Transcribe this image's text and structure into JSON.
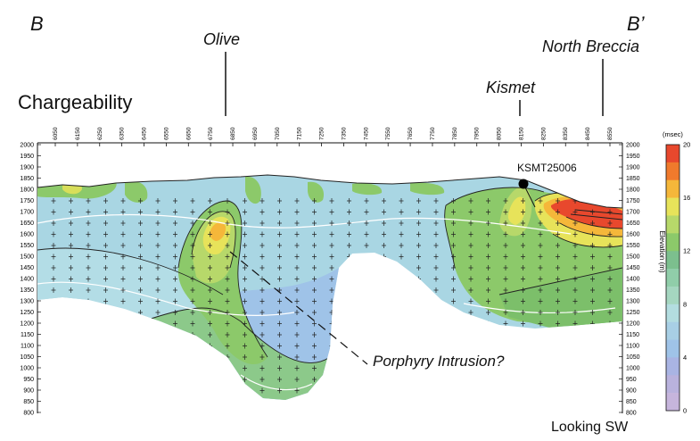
{
  "section": {
    "left_label": "B",
    "right_label": "B’",
    "title": "Chargeability",
    "looking": "Looking SW"
  },
  "targets": [
    {
      "name": "Olive"
    },
    {
      "name": "Kismet"
    },
    {
      "name": "North Breccia"
    }
  ],
  "drillhole": "KSMT25006",
  "annotation": "Porphyry Intrusion?",
  "top_axis_labels": [
    "6050",
    "6150",
    "6250",
    "6350",
    "6450",
    "6550",
    "6650",
    "6750",
    "6850",
    "6950",
    "7050",
    "7150",
    "7250",
    "7350",
    "7450",
    "7550",
    "7650",
    "7750",
    "7850",
    "7950",
    "8050",
    "8150",
    "8250",
    "8350",
    "8450",
    "8550"
  ],
  "elevation_labels": [
    "2000",
    "1950",
    "1900",
    "1850",
    "1800",
    "1750",
    "1700",
    "1650",
    "1600",
    "1550",
    "1500",
    "1450",
    "1400",
    "1350",
    "1300",
    "1250",
    "1200",
    "1150",
    "1100",
    "1050",
    "1000",
    "950",
    "900",
    "850",
    "800"
  ],
  "right_axis_title": "Elevation (m)",
  "colorbar": {
    "unit": "(msec)",
    "ticks": [
      "20",
      "16",
      "12",
      "8",
      "4",
      "0"
    ],
    "colors": [
      "#e8482d",
      "#f07a2c",
      "#f5b73a",
      "#e7e35a",
      "#b7d86a",
      "#8cc96a",
      "#7cbf8e",
      "#90cda9",
      "#a5d6c0",
      "#b3dde0",
      "#a8cfe5",
      "#9fc3e8",
      "#a9b4e3",
      "#b9b2dd",
      "#c6b5dc"
    ]
  }
}
